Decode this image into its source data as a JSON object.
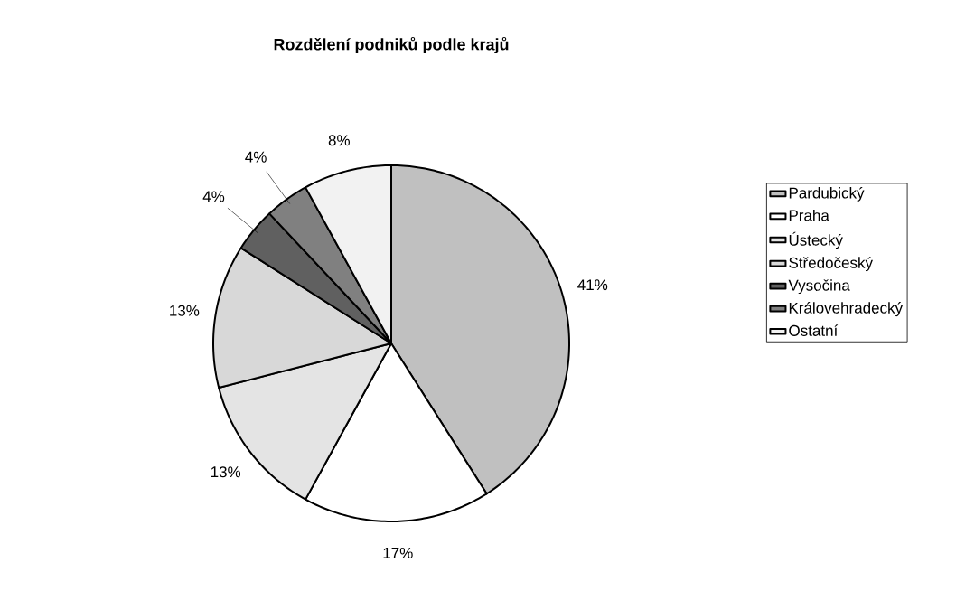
{
  "chart_data": {
    "type": "pie",
    "title": "Rozdělení podniků podle krajů",
    "categories": [
      "Pardubický",
      "Praha",
      "Ústecký",
      "Středočeský",
      "Vysočina",
      "Královehradecký",
      "Ostatní"
    ],
    "values": [
      41,
      17,
      13,
      13,
      4,
      4,
      8
    ],
    "colors": [
      "#c0c0c0",
      "#ffffff",
      "#e4e4e4",
      "#d8d8d8",
      "#606060",
      "#808080",
      "#f2f2f2"
    ],
    "value_labels": [
      "41%",
      "17%",
      "13%",
      "13%",
      "4%",
      "4%",
      "8%"
    ],
    "legend": "right"
  }
}
